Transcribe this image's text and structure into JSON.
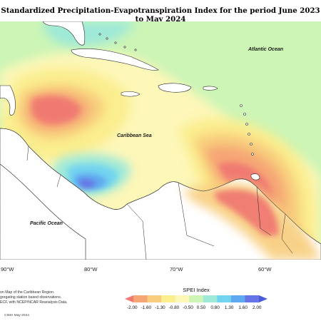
{
  "title": "Standardized Precipitation-Evapotranspiration Index for the period June 2023 to May 2024",
  "map": {
    "labels": {
      "atlantic": "Atlantic Ocean",
      "caribbean": "Caribbean Sea",
      "pacific": "Pacific Ocean"
    },
    "longitudes": [
      "90°W",
      "80°W",
      "70°W",
      "60°W"
    ],
    "colors": {
      "land": "#ffffff",
      "background_index": "#ccf5b6",
      "coast_line": "#222222"
    }
  },
  "notes": [
    "on Map of the Caribbean Region.",
    "gregating station based observations.",
    "ECF, with NCEP/NCAR Reanalysis Data."
  ],
  "legend": {
    "title": "SPEI Index",
    "ticks": [
      "-2.00",
      "-1.60",
      "-1.30",
      "-0.80",
      "-0.50",
      "0.50",
      "0.80",
      "1.30",
      "1.60",
      "2.00"
    ],
    "colors": [
      "#f07a72",
      "#f6a574",
      "#f8cd7d",
      "#fbee8f",
      "#fdf7b8",
      "#ccf5b6",
      "#9ee9d8",
      "#73d4ef",
      "#5fa9f0",
      "#6674e6",
      "#4a5ad8"
    ]
  },
  "credit": "CIMH May-2024"
}
